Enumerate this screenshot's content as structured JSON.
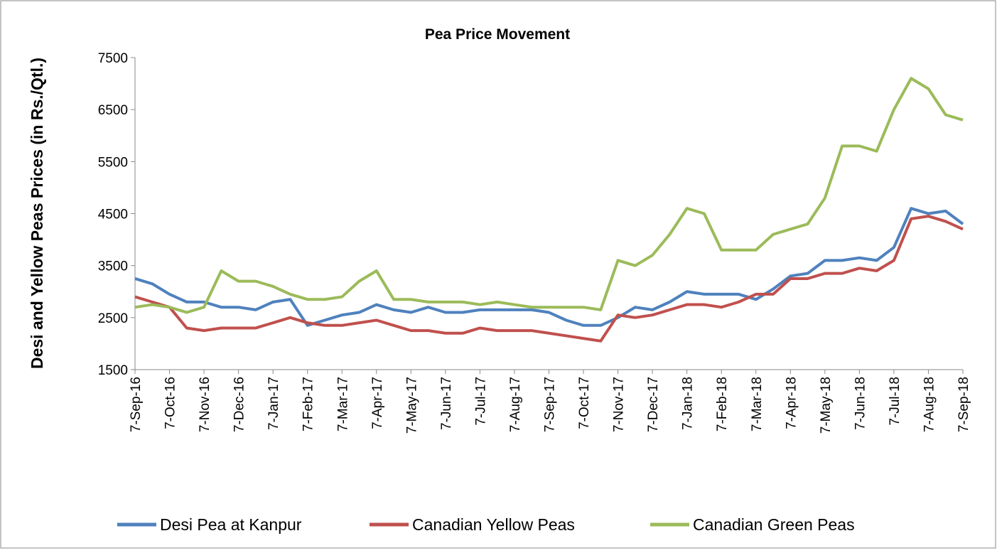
{
  "chart_data": {
    "type": "line",
    "title": "Pea Price Movement",
    "y_label": "Desi and Yellow Peas Prices (in Rs./Qtl.)",
    "categories": [
      "7-Sep-16",
      null,
      "7-Oct-16",
      null,
      "7-Nov-16",
      null,
      "7-Dec-16",
      null,
      "7-Jan-17",
      null,
      "7-Feb-17",
      null,
      "7-Mar-17",
      null,
      "7-Apr-17",
      null,
      "7-May-17",
      null,
      "7-Jun-17",
      null,
      "7-Jul-17",
      null,
      "7-Aug-17",
      null,
      "7-Sep-17",
      null,
      "7-Oct-17",
      null,
      "7-Nov-17",
      null,
      "7-Dec-17",
      null,
      "7-Jan-18",
      null,
      "7-Feb-18",
      null,
      "7-Mar-18",
      null,
      "7-Apr-18",
      null,
      "7-May-18",
      null,
      "7-Jun-18",
      null,
      "7-Jul-18",
      null,
      "7-Aug-18",
      null,
      "7-Sep-18"
    ],
    "series": [
      {
        "name": "Desi Pea at Kanpur",
        "color": "#4f81bd",
        "values": [
          3250,
          3150,
          2950,
          2800,
          2800,
          2700,
          2700,
          2650,
          2800,
          2850,
          2350,
          2450,
          2550,
          2600,
          2750,
          2650,
          2600,
          2700,
          2600,
          2600,
          2650,
          2650,
          2650,
          2650,
          2600,
          2450,
          2350,
          2350,
          2500,
          2700,
          2650,
          2800,
          3000,
          2950,
          2950,
          2950,
          2850,
          3050,
          3300,
          3350,
          3600,
          3600,
          3650,
          3600,
          3850,
          4600,
          4500,
          4550,
          4300
        ]
      },
      {
        "name": "Canadian Yellow Peas",
        "color": "#c0504d",
        "values": [
          2900,
          2800,
          2700,
          2300,
          2250,
          2300,
          2300,
          2300,
          2400,
          2500,
          2400,
          2350,
          2350,
          2400,
          2450,
          2350,
          2250,
          2250,
          2200,
          2200,
          2300,
          2250,
          2250,
          2250,
          2200,
          2150,
          2100,
          2050,
          2550,
          2500,
          2550,
          2650,
          2750,
          2750,
          2700,
          2800,
          2950,
          2950,
          3250,
          3250,
          3350,
          3350,
          3450,
          3400,
          3600,
          4400,
          4450,
          4350,
          4200
        ]
      },
      {
        "name": "Canadian Green Peas",
        "color": "#9bbb59",
        "values": [
          2700,
          2750,
          2700,
          2600,
          2700,
          3400,
          3200,
          3200,
          3100,
          2950,
          2850,
          2850,
          2900,
          3200,
          3400,
          2850,
          2850,
          2800,
          2800,
          2800,
          2750,
          2800,
          2750,
          2700,
          2700,
          2700,
          2700,
          2650,
          3600,
          3500,
          3700,
          4100,
          4600,
          4500,
          3800,
          3800,
          3800,
          4100,
          4200,
          4300,
          4800,
          5800,
          5800,
          5700,
          6500,
          7100,
          6900,
          6400,
          6300
        ]
      }
    ],
    "ylim": [
      1500,
      7500
    ],
    "yticks": [
      1500,
      2500,
      3500,
      4500,
      5500,
      6500,
      7500
    ],
    "grid": false,
    "legend": "bottom"
  }
}
